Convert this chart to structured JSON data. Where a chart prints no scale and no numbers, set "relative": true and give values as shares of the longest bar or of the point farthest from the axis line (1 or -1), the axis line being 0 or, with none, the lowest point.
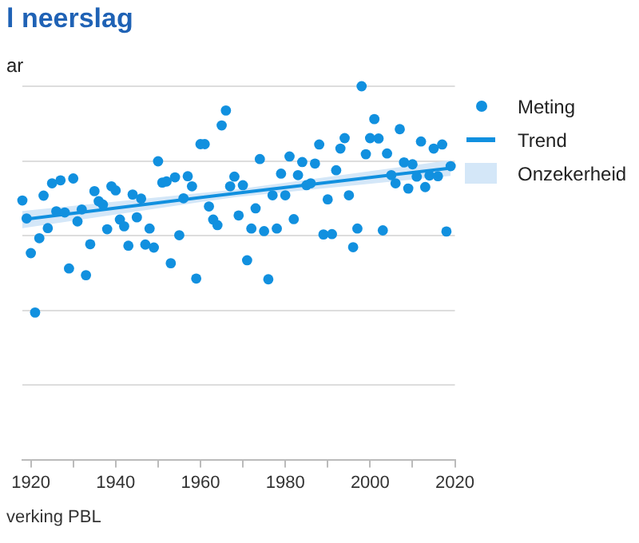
{
  "chart_data": {
    "type": "scatter",
    "title": "l neerslag",
    "ylabel": "ar",
    "relative": true,
    "grid": "y",
    "legend": "right",
    "marker": "circle",
    "xlim": [
      1918,
      2020
    ],
    "xticks": [
      1920,
      {
        "value": 1930,
        "label": null
      },
      1940,
      {
        "value": 1950,
        "label": null
      },
      1960,
      {
        "value": 1970,
        "label": null
      },
      1980,
      {
        "value": 1990,
        "label": null
      },
      2000,
      {
        "value": 2010,
        "label": null
      },
      2020
    ],
    "annotations": [
      "Onzekerheid",
      "verking PBL"
    ],
    "series": [
      {
        "name": "Meting",
        "color": "#1190df",
        "x": [
          1918,
          1919,
          1920,
          1921,
          1922,
          1923,
          1924,
          1925,
          1926,
          1927,
          1928,
          1929,
          1930,
          1931,
          1932,
          1933,
          1934,
          1935,
          1936,
          1937,
          1938,
          1939,
          1940,
          1941,
          1942,
          1943,
          1944,
          1945,
          1946,
          1947,
          1948,
          1949,
          1950,
          1951,
          1952,
          1953,
          1954,
          1955,
          1956,
          1957,
          1958,
          1959,
          1960,
          1961,
          1962,
          1963,
          1964,
          1965,
          1966,
          1967,
          1968,
          1969,
          1970,
          1971,
          1972,
          1973,
          1974,
          1975,
          1976,
          1977,
          1978,
          1979,
          1980,
          1981,
          1982,
          1983,
          1984,
          1985,
          1986,
          1987,
          1988,
          1989,
          1990,
          1991,
          1992,
          1993,
          1994,
          1995,
          1996,
          1997,
          1998,
          1999,
          2000,
          2001,
          2002,
          2003,
          2004,
          2005,
          2006,
          2007,
          2008,
          2009,
          2010,
          2011,
          2012,
          2013,
          2014,
          2015,
          2016,
          2017,
          2018,
          2019
        ],
        "values": [
          0.694,
          0.646,
          0.553,
          0.394,
          0.593,
          0.707,
          0.62,
          0.74,
          0.665,
          0.748,
          0.662,
          0.512,
          0.753,
          0.638,
          0.67,
          0.494,
          0.577,
          0.719,
          0.692,
          0.683,
          0.617,
          0.732,
          0.721,
          0.643,
          0.625,
          0.573,
          0.71,
          0.649,
          0.699,
          0.576,
          0.619,
          0.568,
          0.799,
          0.742,
          0.745,
          0.526,
          0.756,
          0.601,
          0.7,
          0.759,
          0.732,
          0.485,
          0.845,
          0.845,
          0.678,
          0.643,
          0.628,
          0.895,
          0.935,
          0.732,
          0.758,
          0.654,
          0.735,
          0.534,
          0.619,
          0.673,
          0.805,
          0.612,
          0.483,
          0.708,
          0.619,
          0.766,
          0.708,
          0.812,
          0.644,
          0.762,
          0.797,
          0.735,
          0.74,
          0.793,
          0.844,
          0.603,
          0.697,
          0.604,
          0.775,
          0.833,
          0.861,
          0.708,
          0.569,
          0.619,
          1.0,
          0.818,
          0.861,
          0.912,
          0.86,
          0.614,
          0.82,
          0.762,
          0.74,
          0.885,
          0.796,
          0.726,
          0.791,
          0.758,
          0.852,
          0.73,
          0.761,
          0.833,
          0.759,
          0.844,
          0.611,
          0.786
        ]
      },
      {
        "name": "Trend",
        "type": "line",
        "color": "#1190df",
        "marker": "none",
        "x": [
          1918,
          1968,
          2019
        ],
        "values": [
          0.643,
          0.713,
          0.781
        ],
        "lower": [
          0.62,
          0.703,
          0.76
        ],
        "upper": [
          0.666,
          0.723,
          0.802
        ]
      }
    ]
  }
}
